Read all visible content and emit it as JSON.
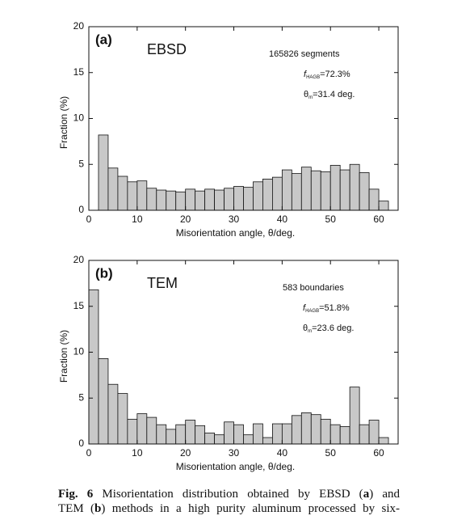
{
  "chart_data": [
    {
      "type": "histogram",
      "bins": [
        2,
        4,
        6,
        8,
        10,
        12,
        14,
        16,
        18,
        20,
        22,
        24,
        26,
        28,
        30,
        32,
        34,
        36,
        38,
        40,
        42,
        44,
        46,
        48,
        50,
        52,
        54,
        56,
        58,
        60,
        62
      ],
      "values": [
        8.2,
        4.6,
        3.7,
        3.1,
        3.2,
        2.4,
        2.2,
        2.1,
        2.0,
        2.3,
        2.1,
        2.3,
        2.2,
        2.4,
        2.6,
        2.5,
        3.1,
        3.4,
        3.6,
        4.4,
        4.0,
        4.7,
        4.3,
        4.2,
        4.9,
        4.4,
        5.0,
        4.1,
        2.3,
        1.0
      ],
      "color": "#c8c8c8",
      "xlim": [
        0,
        64
      ],
      "xticks": [
        0,
        10,
        20,
        30,
        40,
        50,
        60
      ],
      "ylim": [
        0,
        20
      ],
      "yticks": [
        0,
        5,
        10,
        15,
        20
      ],
      "x_label": "Misorientation angle, θ/deg.",
      "y_label": "Fraction (%)",
      "panel_label": "(a)",
      "method": "EBSD",
      "count": "165826 segments",
      "fraction": {
        "symbol": "f",
        "sub": "HAGB",
        "text": "=72.3%"
      },
      "mean": {
        "symbol": "θ",
        "sub": "m",
        "text": "=31.4 deg."
      }
    },
    {
      "type": "histogram",
      "bins": [
        0,
        2,
        4,
        6,
        8,
        10,
        12,
        14,
        16,
        18,
        20,
        22,
        24,
        26,
        28,
        30,
        32,
        34,
        36,
        38,
        40,
        42,
        44,
        46,
        48,
        50,
        52,
        54,
        56,
        58,
        60,
        62
      ],
      "values": [
        16.8,
        9.3,
        6.5,
        5.5,
        2.7,
        3.3,
        2.9,
        2.1,
        1.6,
        2.1,
        2.6,
        2.0,
        1.2,
        1.0,
        2.4,
        2.1,
        1.0,
        2.2,
        0.7,
        2.2,
        2.2,
        3.1,
        3.4,
        3.2,
        2.7,
        2.1,
        1.9,
        6.2,
        2.1,
        2.6,
        0.7
      ],
      "color": "#c8c8c8",
      "xlim": [
        0,
        64
      ],
      "xticks": [
        0,
        10,
        20,
        30,
        40,
        50,
        60
      ],
      "ylim": [
        0,
        20
      ],
      "yticks": [
        0,
        5,
        10,
        15,
        20
      ],
      "x_label": "Misorientation angle, θ/deg.",
      "y_label": "Fraction (%)",
      "panel_label": "(b)",
      "method": "TEM",
      "count": "583 boundaries",
      "fraction": {
        "symbol": "f",
        "sub": "HAGB",
        "text": "=51.8%"
      },
      "mean": {
        "symbol": "θ",
        "sub": "m",
        "text": "=23.6 deg."
      }
    }
  ],
  "caption": {
    "lines": [
      [
        {
          "text": "Fig. 6",
          "bold": true
        },
        {
          "text": " Misorientation distribution obtained by EBSD (",
          "bold": false
        },
        {
          "text": "a",
          "bold": true
        },
        {
          "text": ") and",
          "bold": false
        }
      ],
      [
        {
          "text": "TEM (",
          "bold": false
        },
        {
          "text": "b",
          "bold": true
        },
        {
          "text": ") methods in a high purity aluminum processed by six-",
          "bold": false
        }
      ]
    ]
  }
}
